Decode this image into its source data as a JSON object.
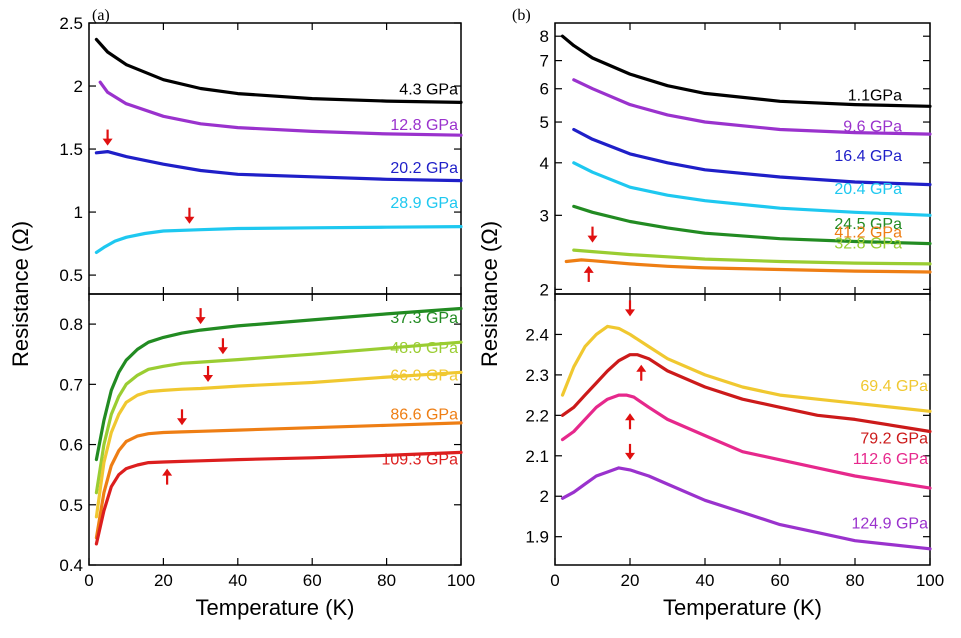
{
  "chart_data": [
    {
      "panel": "(a)",
      "type": "line",
      "xlabel": "Temperature (K)",
      "ylabel": "Resistance (Ω)",
      "xlim": [
        0,
        100
      ],
      "xticks": [
        "0",
        "20",
        "40",
        "60",
        "80",
        "100"
      ],
      "subplots": [
        {
          "position": "top",
          "ylim": [
            0.35,
            2.5
          ],
          "yticks": [
            "0.5",
            "1",
            "1.5",
            "2",
            "2.5"
          ],
          "series": [
            {
              "name": "4.3 GPa",
              "color": "#000000",
              "x": [
                2,
                5,
                10,
                20,
                30,
                40,
                60,
                80,
                100
              ],
              "y": [
                2.37,
                2.27,
                2.17,
                2.05,
                1.98,
                1.94,
                1.9,
                1.88,
                1.87
              ]
            },
            {
              "name": "12.8 GPa",
              "color": "#9a32cd",
              "x": [
                3,
                5,
                10,
                20,
                30,
                40,
                60,
                80,
                100
              ],
              "y": [
                2.03,
                1.95,
                1.86,
                1.76,
                1.7,
                1.67,
                1.64,
                1.62,
                1.61
              ]
            },
            {
              "name": "20.2 GPa",
              "color": "#1f1fc8",
              "x": [
                2,
                5,
                10,
                20,
                30,
                40,
                60,
                80,
                100
              ],
              "y": [
                1.47,
                1.48,
                1.44,
                1.38,
                1.33,
                1.3,
                1.28,
                1.26,
                1.25
              ]
            },
            {
              "name": "28.9 GPa",
              "color": "#1ec8f0",
              "x": [
                2,
                4,
                7,
                10,
                15,
                20,
                30,
                40,
                60,
                80,
                100
              ],
              "y": [
                0.68,
                0.72,
                0.77,
                0.8,
                0.83,
                0.85,
                0.86,
                0.87,
                0.875,
                0.88,
                0.885
              ]
            }
          ],
          "arrows": [
            {
              "x": 5,
              "y": 1.48
            },
            {
              "x": 27,
              "y": 0.86
            }
          ]
        },
        {
          "position": "bottom",
          "ylim": [
            0.4,
            0.85
          ],
          "yticks": [
            "0.4",
            "0.5",
            "0.6",
            "0.7",
            "0.8"
          ],
          "series": [
            {
              "name": "37.3 GPa",
              "color": "#228b22",
              "x": [
                2,
                4,
                6,
                8,
                10,
                13,
                16,
                20,
                25,
                30,
                40,
                60,
                80,
                100
              ],
              "y": [
                0.575,
                0.64,
                0.69,
                0.72,
                0.74,
                0.758,
                0.77,
                0.778,
                0.785,
                0.79,
                0.797,
                0.807,
                0.817,
                0.826
              ]
            },
            {
              "name": "48.0 GPa",
              "color": "#9acd32",
              "x": [
                2,
                4,
                6,
                8,
                10,
                13,
                16,
                20,
                25,
                30,
                40,
                60,
                80,
                100
              ],
              "y": [
                0.52,
                0.6,
                0.65,
                0.68,
                0.7,
                0.715,
                0.725,
                0.73,
                0.735,
                0.737,
                0.741,
                0.75,
                0.76,
                0.77
              ]
            },
            {
              "name": "66.9 GPa",
              "color": "#f0c830",
              "x": [
                2,
                4,
                6,
                8,
                10,
                13,
                16,
                20,
                25,
                30,
                40,
                60,
                80,
                100
              ],
              "y": [
                0.48,
                0.57,
                0.62,
                0.65,
                0.67,
                0.682,
                0.688,
                0.69,
                0.692,
                0.693,
                0.697,
                0.703,
                0.712,
                0.72
              ]
            },
            {
              "name": "86.6 GPa",
              "color": "#ee7e14",
              "x": [
                2,
                4,
                6,
                8,
                10,
                13,
                16,
                20,
                25,
                30,
                40,
                60,
                80,
                100
              ],
              "y": [
                0.445,
                0.52,
                0.565,
                0.59,
                0.605,
                0.614,
                0.618,
                0.62,
                0.621,
                0.622,
                0.624,
                0.628,
                0.632,
                0.636
              ]
            },
            {
              "name": "109.3 GPa",
              "color": "#dc1e1e",
              "x": [
                2,
                4,
                6,
                8,
                10,
                13,
                16,
                20,
                25,
                30,
                40,
                60,
                80,
                100
              ],
              "y": [
                0.435,
                0.49,
                0.53,
                0.55,
                0.56,
                0.566,
                0.57,
                0.571,
                0.572,
                0.573,
                0.575,
                0.578,
                0.582,
                0.587
              ]
            }
          ],
          "arrows": [
            {
              "x": 30,
              "y": 0.79,
              "dir": "down"
            },
            {
              "x": 36,
              "y": 0.74,
              "dir": "down"
            },
            {
              "x": 32,
              "y": 0.694,
              "dir": "down"
            },
            {
              "x": 25,
              "y": 0.622,
              "dir": "down"
            },
            {
              "x": 21,
              "y": 0.57,
              "dir": "up"
            }
          ]
        }
      ]
    },
    {
      "panel": "(b)",
      "type": "line",
      "xlabel": "Temperature (K)",
      "ylabel": "Resistance (Ω)",
      "xlim": [
        0,
        100
      ],
      "xticks": [
        "0",
        "20",
        "40",
        "60",
        "80",
        "100"
      ],
      "subplots": [
        {
          "position": "top",
          "yscale": "log",
          "ylim": [
            1.95,
            8.6
          ],
          "yticks": [
            "2",
            "3",
            "4",
            "5",
            "6",
            "7",
            "8"
          ],
          "series": [
            {
              "name": "1.1GPa",
              "color": "#000000",
              "x": [
                2,
                5,
                10,
                20,
                30,
                40,
                60,
                80,
                100
              ],
              "y": [
                8,
                7.6,
                7.1,
                6.5,
                6.1,
                5.85,
                5.6,
                5.5,
                5.45
              ]
            },
            {
              "name": "9.6 GPa",
              "color": "#9a32cd",
              "x": [
                5,
                10,
                20,
                30,
                40,
                60,
                80,
                100
              ],
              "y": [
                6.3,
                6.0,
                5.5,
                5.2,
                5.0,
                4.8,
                4.72,
                4.68
              ]
            },
            {
              "name": "16.4 GPa",
              "color": "#1f1fc8",
              "x": [
                5,
                10,
                20,
                30,
                40,
                60,
                80,
                100
              ],
              "y": [
                4.8,
                4.55,
                4.2,
                4.0,
                3.85,
                3.7,
                3.6,
                3.55
              ]
            },
            {
              "name": "20.4 GPa",
              "color": "#1ec8f0",
              "x": [
                5,
                10,
                20,
                30,
                40,
                60,
                80,
                100
              ],
              "y": [
                4.0,
                3.8,
                3.5,
                3.35,
                3.25,
                3.12,
                3.05,
                3.0
              ]
            },
            {
              "name": "24.5 GPa",
              "color": "#228b22",
              "x": [
                5,
                10,
                20,
                30,
                40,
                60,
                80,
                100
              ],
              "y": [
                3.15,
                3.05,
                2.9,
                2.8,
                2.72,
                2.64,
                2.6,
                2.57
              ]
            },
            {
              "name": "32.8 GPa",
              "color": "#9acd32",
              "x": [
                5,
                10,
                20,
                30,
                40,
                60,
                80,
                100
              ],
              "y": [
                2.48,
                2.46,
                2.42,
                2.39,
                2.36,
                2.33,
                2.31,
                2.3
              ]
            },
            {
              "name": "41.2 GPa",
              "color": "#ee7e14",
              "x": [
                3,
                7,
                10,
                20,
                30,
                40,
                60,
                80,
                100
              ],
              "y": [
                2.33,
                2.35,
                2.34,
                2.3,
                2.27,
                2.25,
                2.23,
                2.21,
                2.2
              ]
            }
          ],
          "arrows": [
            {
              "x": 10,
              "y": 2.5,
              "dir": "down"
            },
            {
              "x": 9,
              "y": 2.35,
              "dir": "up"
            }
          ]
        },
        {
          "position": "bottom",
          "ylim": [
            1.83,
            2.5
          ],
          "yticks": [
            "1.9",
            "2",
            "2.1",
            "2.2",
            "2.3",
            "2.4"
          ],
          "series": [
            {
              "name": "69.4 GPa",
              "color": "#f0c830",
              "x": [
                2,
                5,
                8,
                11,
                14,
                17,
                20,
                25,
                30,
                40,
                50,
                60,
                70,
                80,
                100
              ],
              "y": [
                2.25,
                2.32,
                2.37,
                2.4,
                2.42,
                2.415,
                2.4,
                2.37,
                2.34,
                2.3,
                2.27,
                2.25,
                2.24,
                2.23,
                2.21
              ]
            },
            {
              "name": "79.2 GPa",
              "color": "#cc1a1a",
              "x": [
                2,
                5,
                8,
                11,
                14,
                17,
                20,
                22,
                25,
                30,
                40,
                50,
                60,
                70,
                80,
                100
              ],
              "y": [
                2.2,
                2.22,
                2.25,
                2.28,
                2.31,
                2.335,
                2.35,
                2.35,
                2.34,
                2.31,
                2.27,
                2.24,
                2.22,
                2.2,
                2.19,
                2.16
              ]
            },
            {
              "name": "112.6 GPa",
              "color": "#e6288c",
              "x": [
                2,
                5,
                8,
                11,
                14,
                17,
                19,
                21,
                25,
                30,
                40,
                50,
                60,
                70,
                80,
                100
              ],
              "y": [
                2.14,
                2.16,
                2.19,
                2.22,
                2.24,
                2.25,
                2.25,
                2.245,
                2.22,
                2.19,
                2.15,
                2.11,
                2.09,
                2.07,
                2.05,
                2.02
              ]
            },
            {
              "name": "124.9 GPa",
              "color": "#9a32cd",
              "x": [
                2,
                5,
                8,
                11,
                14,
                17,
                20,
                25,
                30,
                40,
                50,
                60,
                70,
                80,
                100
              ],
              "y": [
                1.995,
                2.01,
                2.03,
                2.05,
                2.06,
                2.07,
                2.065,
                2.05,
                2.03,
                1.99,
                1.96,
                1.93,
                1.91,
                1.89,
                1.87
              ]
            }
          ],
          "arrows": [
            {
              "x": 20,
              "y": 2.43,
              "dir": "down"
            },
            {
              "x": 23,
              "y": 2.34,
              "dir": "up"
            },
            {
              "x": 20,
              "y": 2.22,
              "dir": "up"
            },
            {
              "x": 20,
              "y": 2.075,
              "dir": "down"
            }
          ]
        }
      ]
    }
  ]
}
